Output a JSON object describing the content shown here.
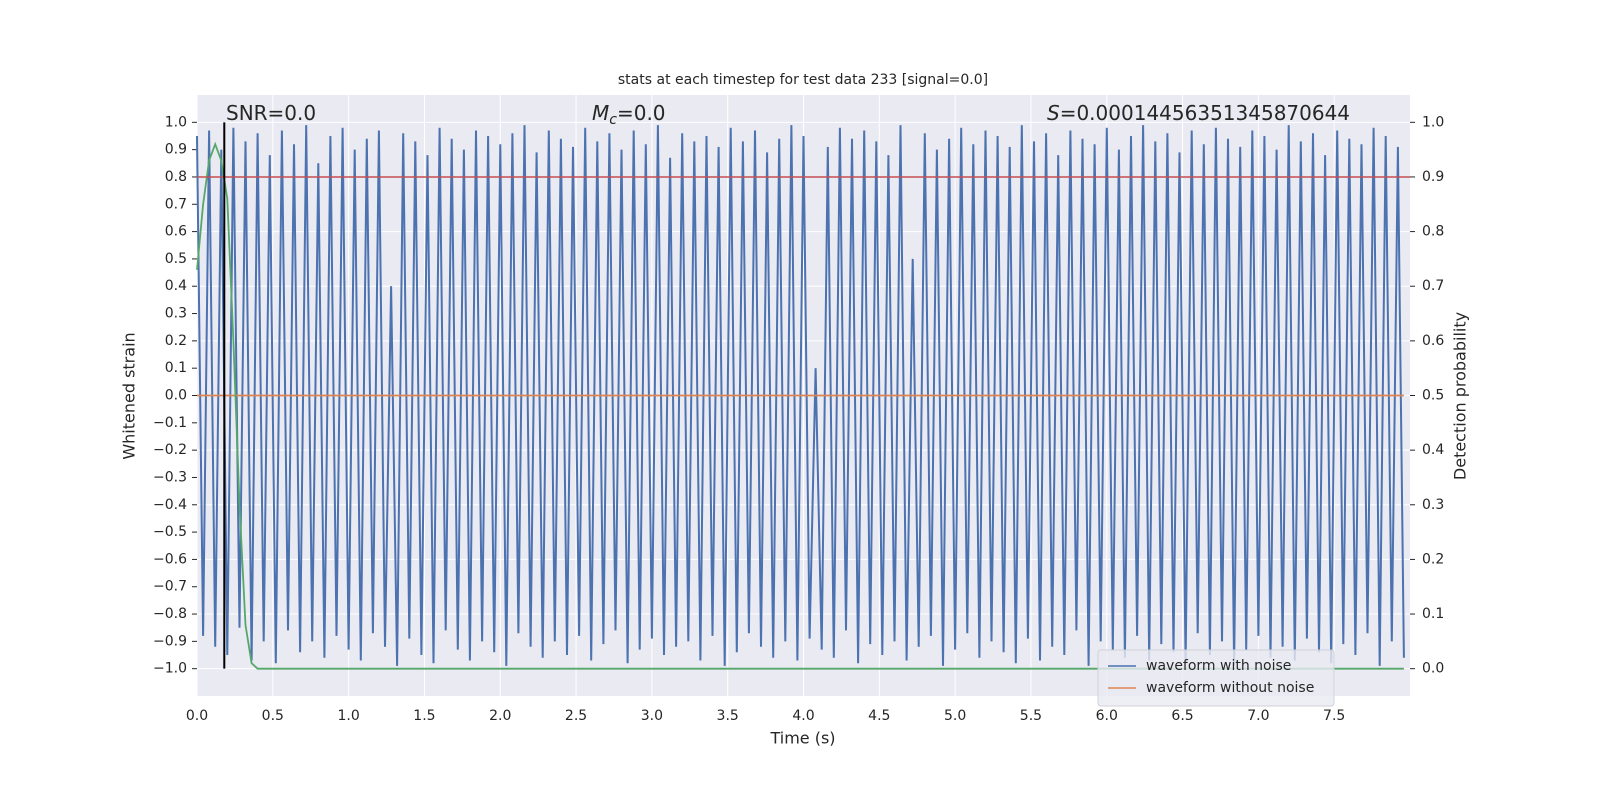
{
  "chart_data": {
    "type": "line",
    "title": "stats at each timestep for test data 233 [signal=0.0]",
    "xlabel": "Time (s)",
    "ylabel": "Whitened strain",
    "y2label": "Detection probability",
    "annotations": [
      {
        "text": "SNR=0.0"
      },
      {
        "symbol": "M",
        "subscript": "c",
        "text": "=0.0"
      },
      {
        "symbol": "S",
        "text": "=0.00014456351345870644"
      }
    ],
    "xlim": [
      0,
      8.0
    ],
    "ylim": [
      -1.1,
      1.1
    ],
    "y2lim": [
      -0.05,
      1.05
    ],
    "xticks": [
      {
        "value": 0,
        "label": "0.0"
      },
      0.5,
      {
        "value": 1,
        "label": "1.0"
      },
      1.5,
      {
        "value": 2,
        "label": "2.0"
      },
      2.5,
      {
        "value": 3,
        "label": "3.0"
      },
      3.5,
      {
        "value": 4,
        "label": "4.0"
      },
      4.5,
      {
        "value": 5,
        "label": "5.0"
      },
      5.5,
      {
        "value": 6,
        "label": "6.0"
      },
      6.5,
      {
        "value": 7,
        "label": "7.0"
      },
      7.5
    ],
    "yticks": [
      {
        "value": -1,
        "label": "−1.0"
      },
      {
        "value": -0.9,
        "label": "−0.9"
      },
      {
        "value": -0.8,
        "label": "−0.8"
      },
      {
        "value": -0.7,
        "label": "−0.7"
      },
      {
        "value": -0.6,
        "label": "−0.6"
      },
      {
        "value": -0.5,
        "label": "−0.5"
      },
      {
        "value": -0.4,
        "label": "−0.4"
      },
      {
        "value": -0.3,
        "label": "−0.3"
      },
      {
        "value": -0.2,
        "label": "−0.2"
      },
      {
        "value": -0.1,
        "label": "−0.1"
      },
      {
        "value": 0,
        "label": "0.0"
      },
      0.1,
      0.2,
      0.3,
      0.4,
      0.5,
      0.6,
      0.7,
      0.8,
      0.9,
      {
        "value": 1,
        "label": "1.0"
      }
    ],
    "y2ticks": [
      {
        "value": 0,
        "label": "0.0"
      },
      0.1,
      0.2,
      0.3,
      0.4,
      0.5,
      0.6,
      0.7,
      0.8,
      0.9,
      {
        "value": 1,
        "label": "1.0"
      }
    ],
    "grid": true,
    "legend": "lower right",
    "series": [
      {
        "name": "waveform with noise",
        "color": "#4c72b0",
        "x": [
          0,
          0.04,
          0.08,
          0.12,
          0.16,
          0.2,
          0.24,
          0.28,
          0.32,
          0.36,
          0.4,
          0.44,
          0.48,
          0.52,
          0.56,
          0.6,
          0.64,
          0.68,
          0.72,
          0.76,
          0.8,
          0.84,
          0.88,
          0.92,
          0.96,
          1,
          1.04,
          1.08,
          1.12,
          1.16,
          1.2,
          1.24,
          1.28,
          1.32,
          1.36,
          1.4,
          1.44,
          1.48,
          1.52,
          1.56,
          1.6,
          1.64,
          1.68,
          1.72,
          1.76,
          1.8,
          1.84,
          1.88,
          1.92,
          1.96,
          2,
          2.04,
          2.08,
          2.12,
          2.16,
          2.2,
          2.24,
          2.28,
          2.32,
          2.36,
          2.4,
          2.44,
          2.48,
          2.52,
          2.56,
          2.6,
          2.64,
          2.68,
          2.72,
          2.76,
          2.8,
          2.84,
          2.88,
          2.92,
          2.96,
          3,
          3.04,
          3.08,
          3.12,
          3.16,
          3.2,
          3.24,
          3.28,
          3.32,
          3.36,
          3.4,
          3.44,
          3.48,
          3.52,
          3.56,
          3.6,
          3.64,
          3.68,
          3.72,
          3.76,
          3.8,
          3.84,
          3.88,
          3.92,
          3.96,
          4,
          4.04,
          4.08,
          4.12,
          4.16,
          4.2,
          4.24,
          4.28,
          4.32,
          4.36,
          4.4,
          4.44,
          4.48,
          4.52,
          4.56,
          4.6,
          4.64,
          4.68,
          4.72,
          4.76,
          4.8,
          4.84,
          4.88,
          4.92,
          4.96,
          5,
          5.04,
          5.08,
          5.12,
          5.16,
          5.2,
          5.24,
          5.28,
          5.32,
          5.36,
          5.4,
          5.44,
          5.48,
          5.52,
          5.56,
          5.6,
          5.64,
          5.68,
          5.72,
          5.76,
          5.8,
          5.84,
          5.88,
          5.92,
          5.96,
          6,
          6.04,
          6.08,
          6.12,
          6.16,
          6.2,
          6.24,
          6.28,
          6.32,
          6.36,
          6.4,
          6.44,
          6.48,
          6.52,
          6.56,
          6.6,
          6.64,
          6.68,
          6.72,
          6.76,
          6.8,
          6.84,
          6.88,
          6.92,
          6.96,
          7,
          7.04,
          7.08,
          7.12,
          7.16,
          7.2,
          7.24,
          7.28,
          7.32,
          7.36,
          7.4,
          7.44,
          7.48,
          7.52,
          7.56,
          7.6,
          7.64,
          7.68,
          7.72,
          7.76,
          7.8,
          7.84,
          7.88,
          7.92,
          7.96
        ],
        "values": [
          0.95,
          -0.88,
          0.97,
          -0.92,
          0.9,
          -0.95,
          0.98,
          -0.85,
          0.93,
          -0.97,
          0.96,
          -0.9,
          0.88,
          -0.98,
          0.97,
          -0.86,
          0.92,
          -0.94,
          0.99,
          -0.9,
          0.85,
          -0.96,
          0.95,
          -0.88,
          0.98,
          -0.93,
          0.9,
          -0.97,
          0.94,
          -0.87,
          0.97,
          -0.92,
          0.4,
          -0.99,
          0.96,
          -0.89,
          0.93,
          -0.95,
          0.88,
          -0.98,
          0.98,
          -0.86,
          0.94,
          -0.93,
          0.9,
          -0.97,
          0.97,
          -0.9,
          0.95,
          -0.94,
          0.92,
          -0.99,
          0.96,
          -0.87,
          0.99,
          -0.92,
          0.89,
          -0.96,
          0.97,
          -0.9,
          0.94,
          -0.95,
          0.91,
          -0.88,
          0.98,
          -0.97,
          0.93,
          -0.91,
          0.96,
          -0.86,
          0.9,
          -0.98,
          0.97,
          -0.93,
          0.92,
          -0.89,
          0.99,
          -0.95,
          0.87,
          -0.92,
          0.96,
          -0.9,
          0.93,
          -0.97,
          0.95,
          -0.88,
          0.91,
          -0.99,
          0.98,
          -0.94,
          0.93,
          -0.87,
          0.97,
          -0.92,
          0.89,
          -0.96,
          0.94,
          -0.9,
          0.99,
          -0.97,
          0.95,
          -0.89,
          0.1,
          -0.93,
          0.91,
          -0.96,
          0.98,
          -0.86,
          0.94,
          -0.98,
          0.97,
          -0.91,
          0.93,
          -0.95,
          0.88,
          -0.9,
          0.99,
          -0.97,
          0.5,
          -0.92,
          0.96,
          -0.88,
          0.9,
          -0.99,
          0.94,
          -0.93,
          0.98,
          -0.87,
          0.92,
          -0.96,
          0.97,
          -0.9,
          0.95,
          -0.94,
          0.91,
          -0.98,
          0.99,
          -0.89,
          0.93,
          -0.97,
          0.96,
          -0.92,
          0.88,
          -0.95,
          0.97,
          -0.86,
          0.94,
          -0.99,
          0.92,
          -0.9,
          0.98,
          -0.93,
          0.9,
          -0.96,
          0.95,
          -0.88,
          0.99,
          -0.97,
          0.93,
          -0.91,
          0.96,
          -0.94,
          0.89,
          -0.98,
          0.97,
          -0.87,
          0.92,
          -0.95,
          0.98,
          -0.9,
          0.94,
          -0.99,
          0.91,
          -0.93,
          0.97,
          -0.88,
          0.95,
          -0.96,
          0.9,
          -0.92,
          0.99,
          -0.97,
          0.93,
          -0.89,
          0.96,
          -0.94,
          0.88,
          -0.98,
          0.97,
          -0.91,
          0.94,
          -0.95,
          0.92,
          -0.87,
          0.98,
          -0.99,
          0.95,
          -0.9,
          0.91,
          -0.96
        ]
      },
      {
        "name": "waveform without noise",
        "color": "#dd8452",
        "x": [
          0,
          7.96
        ],
        "values": [
          0,
          0
        ]
      },
      {
        "color": "#55a868",
        "axis": "y2",
        "x": [
          0,
          0.04,
          0.08,
          0.12,
          0.16,
          0.2,
          0.24,
          0.28,
          0.32,
          0.36,
          0.4,
          7.96
        ],
        "values": [
          0.73,
          0.85,
          0.93,
          0.96,
          0.93,
          0.86,
          0.6,
          0.3,
          0.08,
          0.01,
          0,
          0
        ]
      }
    ],
    "hlines": [
      {
        "value": 0.9,
        "axis": "y2",
        "color": "#c44e52"
      }
    ],
    "vlines": [
      {
        "value": 0.18,
        "color": "#000000"
      }
    ]
  }
}
